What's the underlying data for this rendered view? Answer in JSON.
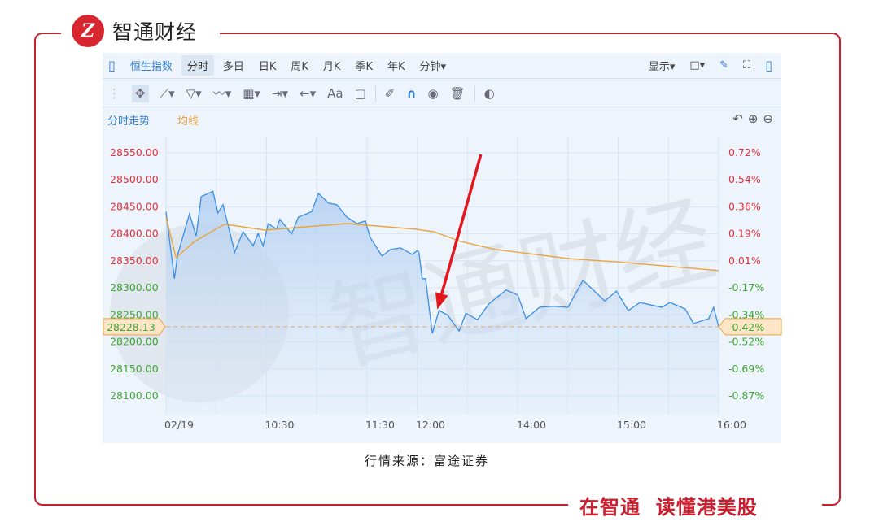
{
  "brand": {
    "name": "智通财经",
    "logo_letter": "Z",
    "slogan": "在智通  读懂港美股"
  },
  "source": "行情来源：富途证券",
  "toolbar": {
    "index_name": "恒生指数",
    "periods": [
      "分时",
      "多日",
      "日K",
      "周K",
      "月K",
      "季K",
      "年K",
      "分钟▾"
    ],
    "selected_period": "分时",
    "display": "显示▾",
    "right_icons": [
      "layout-square-icon",
      "brush-icon",
      "fullscreen-icon",
      "panel-icon"
    ],
    "draw_tools": [
      "move-icon",
      "line-icon",
      "polyline-icon",
      "wave-icon",
      "fibonacci-icon",
      "range-icon",
      "arrow-icon",
      "text-icon",
      "comment-icon",
      "pencil-icon",
      "magnet-icon",
      "eye-icon",
      "trash-icon",
      "toggle-icon"
    ],
    "text_tool": "Aa"
  },
  "legend": {
    "trend": "分时走势",
    "avg": "均线"
  },
  "colors": {
    "price": "#3a8ee6",
    "avg": "#e8a33a",
    "up": "#e0303b",
    "down": "#3fa535",
    "arrow": "#e3161d",
    "frame": "#c8202f"
  },
  "chart_data": {
    "type": "line",
    "ylim": [
      28100,
      28550
    ],
    "yticks": [
      "28550.00",
      "28500.00",
      "28450.00",
      "28400.00",
      "28350.00",
      "28300.00",
      "28250.00",
      "28200.00",
      "28150.00",
      "28100.00"
    ],
    "pct_ticks": [
      "0.72%",
      "0.54%",
      "0.36%",
      "0.19%",
      "0.01%",
      "-0.17%",
      "-0.34%",
      "-0.52%",
      "-0.69%",
      "-0.87%"
    ],
    "xticks": [
      "02/19",
      "10:30",
      "11:30",
      "12:00",
      "14:00",
      "15:00",
      "16:00"
    ],
    "current": {
      "price": "28228.13",
      "pct": "-0.42%"
    },
    "sessions": [
      [
        "09:30",
        "12:00"
      ],
      [
        "13:00",
        "16:00"
      ]
    ],
    "series": [
      {
        "key": "price",
        "points": [
          [
            "09:30",
            28441
          ],
          [
            "09:35",
            28317
          ],
          [
            "09:37",
            28362
          ],
          [
            "09:44",
            28437
          ],
          [
            "09:48",
            28396
          ],
          [
            "09:51",
            28469
          ],
          [
            "09:58",
            28479
          ],
          [
            "10:01",
            28439
          ],
          [
            "10:04",
            28454
          ],
          [
            "10:11",
            28366
          ],
          [
            "10:16",
            28404
          ],
          [
            "10:22",
            28378
          ],
          [
            "10:25",
            28401
          ],
          [
            "10:28",
            28378
          ],
          [
            "10:31",
            28419
          ],
          [
            "10:36",
            28409
          ],
          [
            "10:38",
            28427
          ],
          [
            "10:45",
            28400
          ],
          [
            "10:49",
            28431
          ],
          [
            "10:57",
            28441
          ],
          [
            "11:01",
            28475
          ],
          [
            "11:07",
            28457
          ],
          [
            "11:12",
            28454
          ],
          [
            "11:18",
            28431
          ],
          [
            "11:24",
            28419
          ],
          [
            "11:29",
            28424
          ],
          [
            "11:32",
            28393
          ],
          [
            "11:39",
            28359
          ],
          [
            "11:44",
            28371
          ],
          [
            "11:50",
            28374
          ],
          [
            "11:57",
            28362
          ],
          [
            "12:00",
            28369
          ],
          [
            "13:01",
            28366
          ],
          [
            "13:03",
            28317
          ],
          [
            "13:05",
            28317
          ],
          [
            "13:09",
            28216
          ],
          [
            "13:13",
            28258
          ],
          [
            "13:18",
            28250
          ],
          [
            "13:25",
            28220
          ],
          [
            "13:29",
            28253
          ],
          [
            "13:36",
            28241
          ],
          [
            "13:43",
            28271
          ],
          [
            "13:53",
            28296
          ],
          [
            "14:00",
            28287
          ],
          [
            "14:05",
            28243
          ],
          [
            "14:13",
            28264
          ],
          [
            "14:21",
            28266
          ],
          [
            "14:30",
            28264
          ],
          [
            "14:39",
            28314
          ],
          [
            "14:52",
            28276
          ],
          [
            "14:59",
            28294
          ],
          [
            "15:06",
            28258
          ],
          [
            "15:13",
            28273
          ],
          [
            "15:26",
            28264
          ],
          [
            "15:31",
            28273
          ],
          [
            "15:40",
            28261
          ],
          [
            "15:45",
            28234
          ],
          [
            "15:54",
            28243
          ],
          [
            "15:57",
            28264
          ],
          [
            "16:00",
            28228.13
          ]
        ]
      },
      {
        "key": "avg",
        "points": [
          [
            "09:30",
            28431
          ],
          [
            "09:36",
            28356
          ],
          [
            "09:47",
            28386
          ],
          [
            "10:05",
            28418
          ],
          [
            "10:29",
            28407
          ],
          [
            "11:18",
            28419
          ],
          [
            "11:58",
            28409
          ],
          [
            "13:10",
            28404
          ],
          [
            "13:26",
            28386
          ],
          [
            "13:47",
            28371
          ],
          [
            "14:31",
            28354
          ],
          [
            "15:04",
            28347
          ],
          [
            "16:00",
            28332
          ]
        ]
      }
    ],
    "annotation": {
      "type": "arrow",
      "from": [
        "13:38",
        28547
      ],
      "to": [
        "13:12",
        28260
      ]
    },
    "grid": true
  }
}
